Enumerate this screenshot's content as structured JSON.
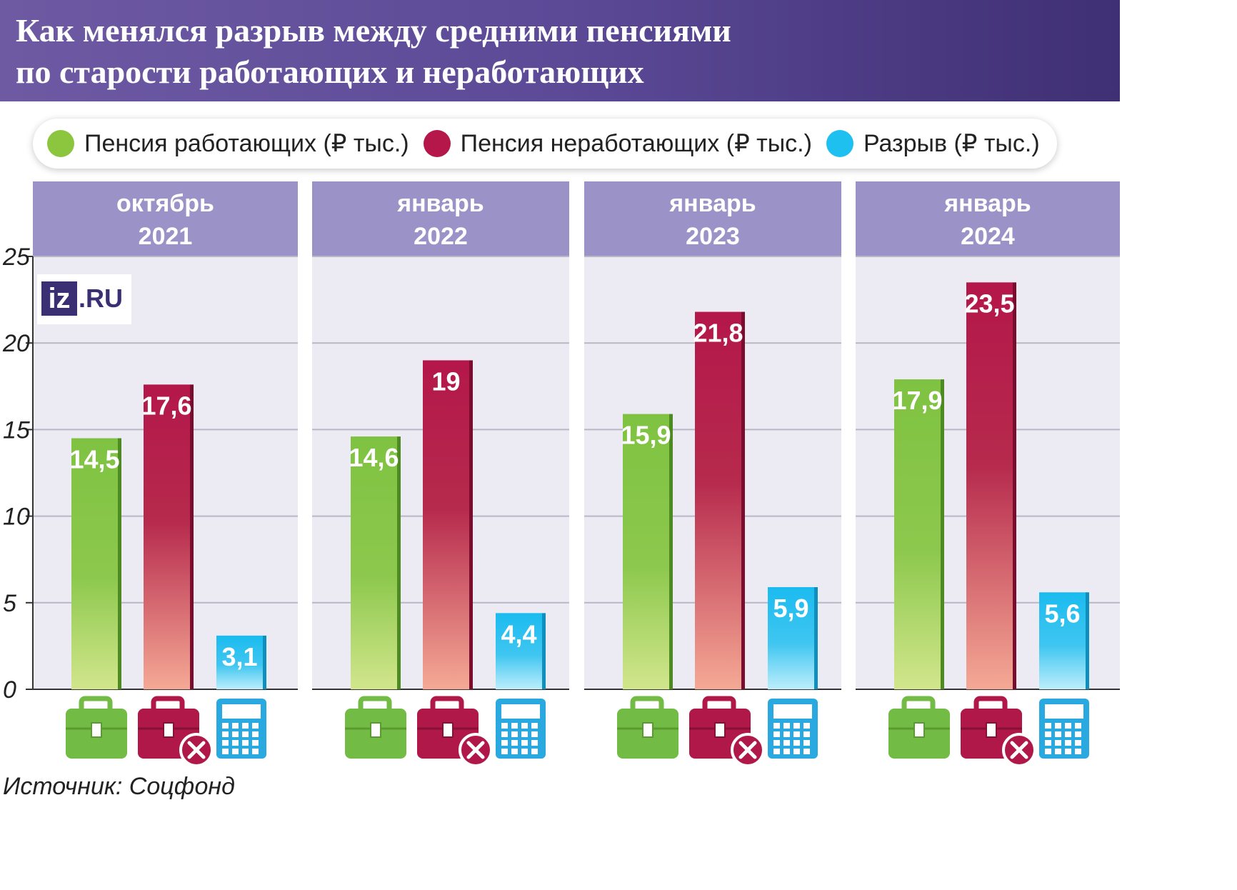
{
  "title_line1": "Как менялся разрыв между средними пенсиями",
  "title_line2": "по старости работающих и неработающих",
  "legend": [
    {
      "label": "Пенсия работающих (₽ тыс.)",
      "color": "#8cc63f"
    },
    {
      "label": "Пенсия неработающих (₽ тыс.)",
      "color": "#b5174a"
    },
    {
      "label": "Разрыв (₽ тыс.)",
      "color": "#1ec0f0"
    }
  ],
  "logo": {
    "part1": "iz",
    "part2": ".RU"
  },
  "source": "Источник: Соцфонд",
  "icons": [
    "briefcase-icon",
    "briefcase-cross-icon",
    "calculator-icon"
  ],
  "colors": {
    "working_top": "#7fc241",
    "working_bottom": "#cfe38a",
    "nonworking_top": "#b4174a",
    "nonworking_bottom": "#f4a793",
    "gap_top": "#1bbbef",
    "gap_bottom": "#b6ecfb",
    "panel_header": "#9b93c8",
    "panel_bg": "#ecebf4"
  },
  "chart_data": {
    "type": "bar",
    "ylim": [
      0,
      25
    ],
    "yticks": [
      "0",
      "5",
      "10",
      "15",
      "20",
      "25"
    ],
    "grid": true,
    "groups": [
      {
        "label_line1": "октябрь",
        "label_line2": "2021",
        "values": [
          14.5,
          17.6,
          3.1
        ],
        "labels": [
          "14,5",
          "17,6",
          "3,1"
        ]
      },
      {
        "label_line1": "январь",
        "label_line2": "2022",
        "values": [
          14.6,
          19,
          4.4
        ],
        "labels": [
          "14,6",
          "19",
          "4,4"
        ]
      },
      {
        "label_line1": "январь",
        "label_line2": "2023",
        "values": [
          15.9,
          21.8,
          5.9
        ],
        "labels": [
          "15,9",
          "21,8",
          "5,9"
        ]
      },
      {
        "label_line1": "январь",
        "label_line2": "2024",
        "values": [
          17.9,
          23.5,
          5.6
        ],
        "labels": [
          "17,9",
          "23,5",
          "5,6"
        ]
      }
    ],
    "series": [
      {
        "name": "Пенсия работающих (₽ тыс.)"
      },
      {
        "name": "Пенсия неработающих (₽ тыс.)"
      },
      {
        "name": "Разрыв (₽ тыс.)"
      }
    ]
  }
}
